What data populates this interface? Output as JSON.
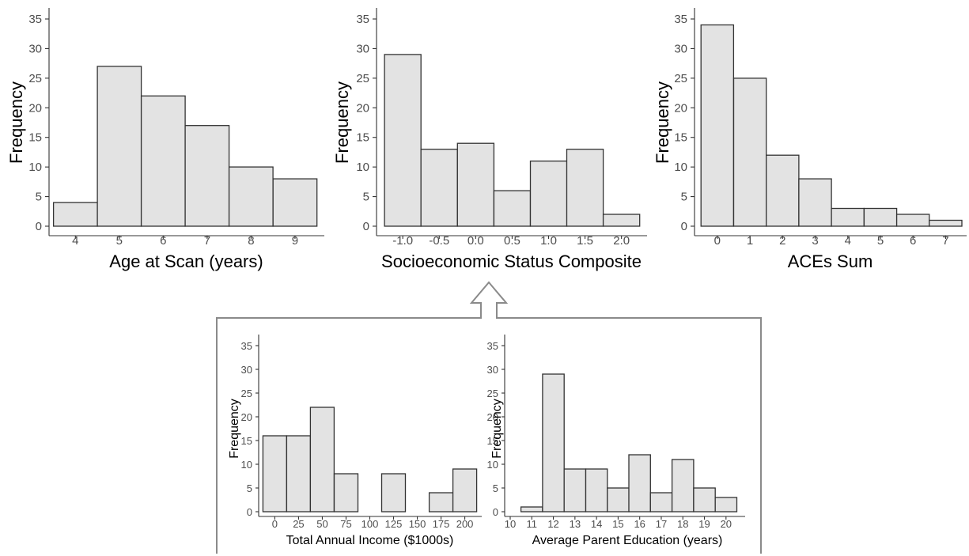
{
  "chart_data": [
    {
      "id": "age",
      "type": "bar",
      "xlabel": "Age at Scan (years)",
      "ylabel": "Frequency",
      "ylim": [
        0,
        35
      ],
      "yticks": [
        0,
        5,
        10,
        15,
        20,
        25,
        30,
        35
      ],
      "xticks": [
        4,
        5,
        6,
        7,
        8,
        9
      ],
      "xtick_labels": [
        "4",
        "5",
        "6",
        "7",
        "8",
        "9"
      ],
      "bin_edges": [
        3.5,
        4.5,
        5.5,
        6.5,
        7.5,
        8.5,
        9.5
      ],
      "values": [
        4,
        27,
        22,
        17,
        10,
        8
      ],
      "grid": false
    },
    {
      "id": "ses",
      "type": "bar",
      "xlabel": "Socioeconomic Status Composite",
      "ylabel": "Frequency",
      "ylim": [
        0,
        35
      ],
      "yticks": [
        0,
        5,
        10,
        15,
        20,
        25,
        30,
        35
      ],
      "xticks": [
        -1.0,
        -0.5,
        0.0,
        0.5,
        1.0,
        1.5,
        2.0
      ],
      "xtick_labels": [
        "-1.0",
        "-0.5",
        "0.0",
        "0.5",
        "1.0",
        "1.5",
        "2.0"
      ],
      "bin_edges": [
        -1.25,
        -0.75,
        -0.25,
        0.25,
        0.75,
        1.25,
        1.75,
        2.25
      ],
      "values": [
        29,
        13,
        14,
        6,
        11,
        13,
        2
      ],
      "grid": false
    },
    {
      "id": "aces",
      "type": "bar",
      "xlabel": "ACEs Sum",
      "ylabel": "Frequency",
      "ylim": [
        0,
        35
      ],
      "yticks": [
        0,
        5,
        10,
        15,
        20,
        25,
        30,
        35
      ],
      "xticks": [
        0,
        1,
        2,
        3,
        4,
        5,
        6,
        7
      ],
      "xtick_labels": [
        "0",
        "1",
        "2",
        "3",
        "4",
        "5",
        "6",
        "7"
      ],
      "bin_edges": [
        -0.5,
        0.5,
        1.5,
        2.5,
        3.5,
        4.5,
        5.5,
        6.5,
        7.5
      ],
      "values": [
        34,
        25,
        12,
        8,
        3,
        3,
        2,
        1
      ],
      "grid": false
    },
    {
      "id": "income",
      "type": "bar",
      "xlabel": "Total Annual Income ($1000s)",
      "ylabel": "Frequency",
      "ylim": [
        0,
        35
      ],
      "yticks": [
        0,
        5,
        10,
        15,
        20,
        25,
        30,
        35
      ],
      "xticks": [
        0,
        25,
        50,
        75,
        100,
        125,
        150,
        175,
        200
      ],
      "xtick_labels": [
        "0",
        "25",
        "50",
        "75",
        "100",
        "125",
        "150",
        "175",
        "200"
      ],
      "bin_edges": [
        -12.5,
        12.5,
        37.5,
        62.5,
        87.5,
        112.5,
        137.5,
        162.5,
        187.5,
        212.5
      ],
      "values": [
        16,
        16,
        22,
        8,
        0,
        8,
        0,
        4,
        9
      ],
      "grid": false
    },
    {
      "id": "education",
      "type": "bar",
      "xlabel": "Average Parent Education (years)",
      "ylabel": "Frequency",
      "ylim": [
        0,
        35
      ],
      "yticks": [
        0,
        5,
        10,
        15,
        20,
        25,
        30,
        35
      ],
      "xticks": [
        10,
        11,
        12,
        13,
        14,
        15,
        16,
        17,
        18,
        19,
        20
      ],
      "xtick_labels": [
        "10",
        "11",
        "12",
        "13",
        "14",
        "15",
        "16",
        "17",
        "18",
        "19",
        "20"
      ],
      "bin_edges": [
        10.5,
        11.5,
        12.5,
        13.5,
        14.5,
        15.5,
        16.5,
        17.5,
        18.5,
        19.5,
        20.5
      ],
      "values": [
        1,
        29,
        9,
        9,
        5,
        12,
        4,
        11,
        5,
        3
      ],
      "grid": false
    }
  ],
  "colors": {
    "bar_fill": "#e3e3e3",
    "bar_stroke": "#333333",
    "connector": "#8a8a8a"
  }
}
